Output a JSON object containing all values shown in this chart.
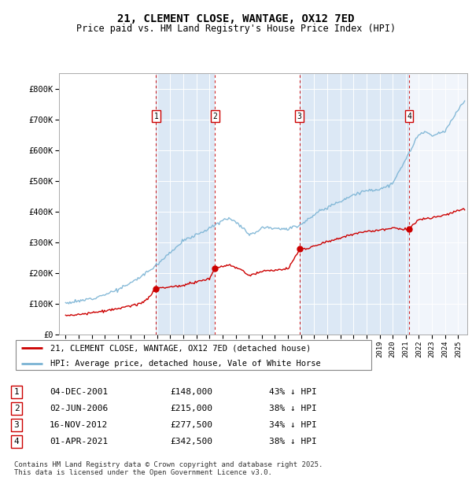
{
  "title": "21, CLEMENT CLOSE, WANTAGE, OX12 7ED",
  "subtitle": "Price paid vs. HM Land Registry's House Price Index (HPI)",
  "hpi_color": "#7ab3d4",
  "price_color": "#cc0000",
  "background_color": "#dce8f5",
  "sale_dates": [
    2001.92,
    2006.42,
    2012.88,
    2021.25
  ],
  "sale_prices": [
    148000,
    215000,
    277500,
    342500
  ],
  "sale_labels": [
    "1",
    "2",
    "3",
    "4"
  ],
  "legend_entries": [
    "21, CLEMENT CLOSE, WANTAGE, OX12 7ED (detached house)",
    "HPI: Average price, detached house, Vale of White Horse"
  ],
  "table_rows": [
    [
      "1",
      "04-DEC-2001",
      "£148,000",
      "43% ↓ HPI"
    ],
    [
      "2",
      "02-JUN-2006",
      "£215,000",
      "38% ↓ HPI"
    ],
    [
      "3",
      "16-NOV-2012",
      "£277,500",
      "34% ↓ HPI"
    ],
    [
      "4",
      "01-APR-2021",
      "£342,500",
      "38% ↓ HPI"
    ]
  ],
  "footer": "Contains HM Land Registry data © Crown copyright and database right 2025.\nThis data is licensed under the Open Government Licence v3.0.",
  "ylim": [
    0,
    850000
  ],
  "yticks": [
    0,
    100000,
    200000,
    300000,
    400000,
    500000,
    600000,
    700000,
    800000
  ],
  "ytick_labels": [
    "£0",
    "£100K",
    "£200K",
    "£300K",
    "£400K",
    "£500K",
    "£600K",
    "£700K",
    "£800K"
  ],
  "xlim_start": 1994.5,
  "xlim_end": 2025.7
}
